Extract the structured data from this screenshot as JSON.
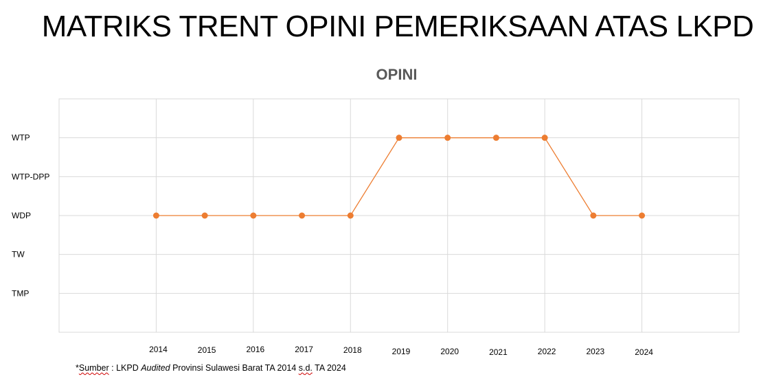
{
  "page": {
    "title": "MATRIKS TRENT OPINI PEMERIKSAAN ATAS LKPD",
    "source_prefix": "*",
    "source_word": "Sumber",
    "source_part1": " : LKPD ",
    "source_italic": "Audited",
    "source_part2": " Provinsi Sulawesi Barat TA 2014 ",
    "source_sd": "s.d.",
    "source_part3": " TA 2024"
  },
  "chart_data": {
    "type": "line",
    "title": "OPINI",
    "xlabel": "",
    "ylabel": "",
    "x": [
      "2014",
      "2015",
      "2016",
      "2017",
      "2018",
      "2019",
      "2020",
      "2021",
      "2022",
      "2023",
      "2024"
    ],
    "y_categories": [
      "TMP",
      "TW",
      "WDP",
      "WTP-DPP",
      "WTP"
    ],
    "series": [
      {
        "values": [
          "WDP",
          "WDP",
          "WDP",
          "WDP",
          "WDP",
          "WTP",
          "WTP",
          "WTP",
          "WTP",
          "WDP",
          "WDP"
        ],
        "color": "#ED7D31"
      }
    ],
    "grid": true,
    "legend": "none",
    "colors": {
      "line": "#ED7D31",
      "grid": "#D9D9D9",
      "axis_text": "#000000"
    }
  }
}
